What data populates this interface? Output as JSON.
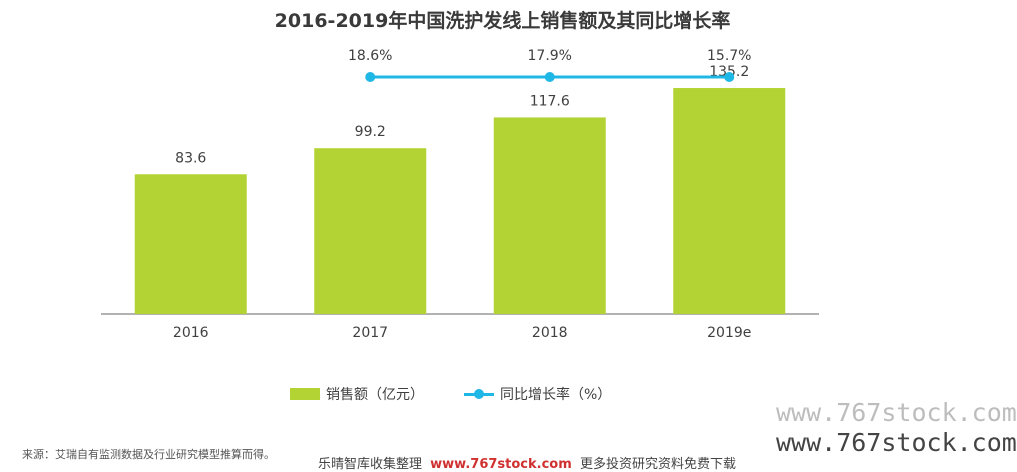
{
  "chart_data": {
    "type": "bar",
    "title": "2016-2019年中国洗护发线上销售额及其同比增长率",
    "categories": [
      "2016",
      "2017",
      "2018",
      "2019e"
    ],
    "series": [
      {
        "name": "销售额（亿元）",
        "type": "bar",
        "values": [
          83.6,
          99.2,
          117.6,
          135.2
        ],
        "labels": [
          "83.6",
          "99.2",
          "117.6",
          "135.2"
        ],
        "color": "#b3d334"
      },
      {
        "name": "同比增长率（%）",
        "type": "line",
        "values": [
          null,
          18.6,
          17.9,
          15.7
        ],
        "labels": [
          "",
          "18.6%",
          "17.9%",
          "15.7%"
        ],
        "color": "#1eb7e6"
      }
    ],
    "ylim": [
      0,
      140
    ],
    "grid": false,
    "legend_position": "bottom"
  },
  "legend": {
    "bar_label": "销售额（亿元）",
    "line_label": "同比增长率（%）"
  },
  "footer": {
    "source": "来源：艾瑞自有监测数据及行业研究模型推算而得。",
    "promo_prefix": "乐晴智库收集整理",
    "promo_site": "www.767stock.com",
    "promo_suffix": "更多投资研究资料免费下载"
  },
  "watermark": {
    "line1": "www.767stock.com",
    "line2": "www.767stock.com"
  }
}
